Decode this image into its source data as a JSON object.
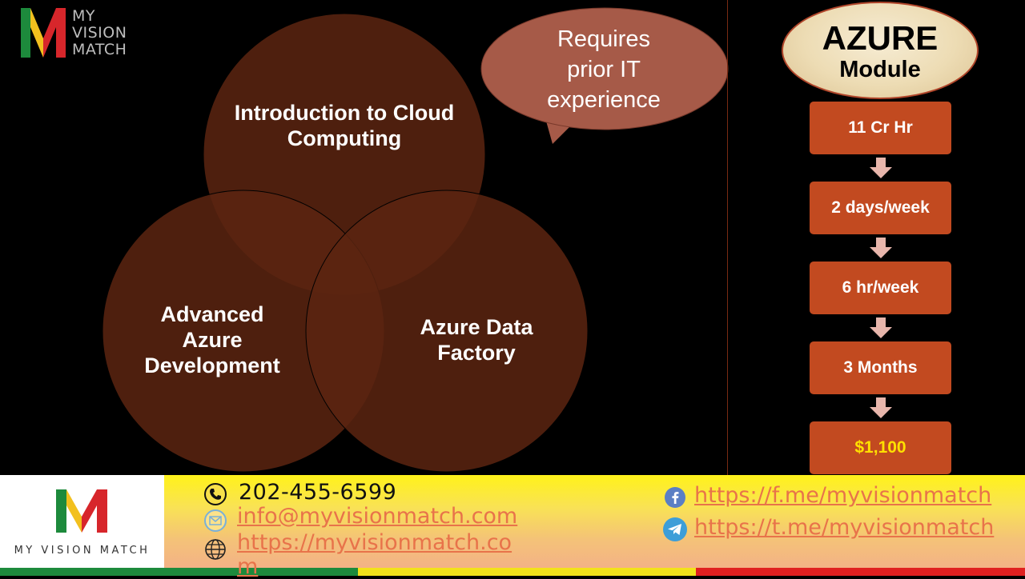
{
  "logo": {
    "brand_lines": [
      "MY",
      "VISION",
      "MATCH"
    ],
    "footer_wordmark": "MY VISION MATCH",
    "colors": {
      "green": "#1d8a3c",
      "yellow": "#f2c01e",
      "red": "#d7262b"
    }
  },
  "venn": {
    "circles": [
      {
        "label": "Introduction to Cloud Computing"
      },
      {
        "label": "Advanced Azure Development"
      },
      {
        "label": "Azure Data Factory"
      }
    ],
    "fill_color": "#5c2410"
  },
  "bubble": {
    "text_lines": [
      "Requires",
      "prior IT",
      "experience"
    ],
    "color": "#a65a48"
  },
  "module": {
    "title": "AZURE",
    "subtitle": "Module",
    "steps": [
      "11 Cr Hr",
      "2 days/week",
      "6 hr/week",
      "3 Months",
      "$1,100"
    ],
    "step_color": "#c24a20",
    "price_color": "#ffe000"
  },
  "contact": {
    "phone": "202-455-6599",
    "email": "info@myvisionmatch.com",
    "website_lines": [
      "https://myvisionmatch.co",
      "m"
    ],
    "facebook": "https://f.me/myvisionmatch",
    "telegram": "https://t.me/myvisionmatch",
    "icons": [
      "phone-icon",
      "mail-icon",
      "globe-icon",
      "facebook-icon",
      "telegram-icon"
    ]
  }
}
